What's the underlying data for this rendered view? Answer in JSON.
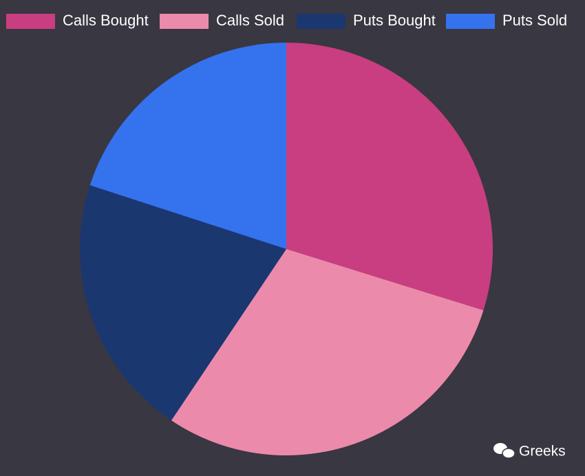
{
  "chart_data": {
    "type": "pie",
    "categories": [
      "Calls Bought",
      "Calls Sold",
      "Puts Bought",
      "Puts Sold"
    ],
    "values": [
      29.8,
      29.6,
      20.6,
      20.0
    ],
    "colors": [
      "#c93e80",
      "#ec8aab",
      "#1b3770",
      "#3572ee"
    ],
    "legend": "top",
    "watermark": "Greeks"
  }
}
